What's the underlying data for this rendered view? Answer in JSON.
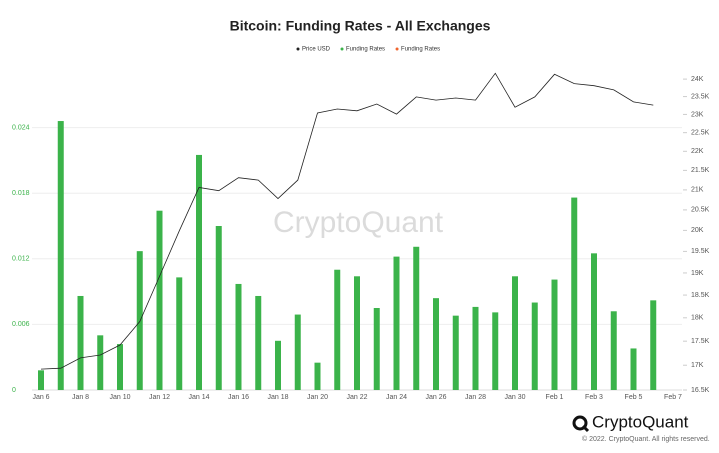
{
  "chart_data": {
    "type": "bar",
    "title": "Bitcoin: Funding Rates - All Exchanges",
    "watermark": "CryptoQuant",
    "brand": "CryptoQuant",
    "copyright": "© 2022. CryptoQuant. All rights reserved.",
    "categories": [
      "Jan 6",
      null,
      "Jan 8",
      null,
      "Jan 10",
      null,
      "Jan 12",
      null,
      "Jan 14",
      null,
      "Jan 16",
      null,
      "Jan 18",
      null,
      "Jan 20",
      null,
      "Jan 22",
      null,
      "Jan 24",
      null,
      "Jan 26",
      null,
      "Jan 28",
      null,
      "Jan 30",
      null,
      "Feb 1",
      null,
      "Feb 3",
      null,
      "Feb 5",
      null,
      "Feb 7"
    ],
    "series": [
      {
        "name": "Price USD",
        "type": "line",
        "axis": "y2",
        "color": "#222222",
        "values": [
          16920,
          16940,
          17150,
          17210,
          17420,
          17920,
          18920,
          19990,
          21060,
          20980,
          21310,
          21250,
          20780,
          21250,
          23040,
          23150,
          23100,
          23290,
          23010,
          23490,
          23400,
          23460,
          23400,
          24170,
          23200,
          23490,
          24140,
          23870,
          23810,
          23690,
          23350,
          23260,
          null
        ]
      },
      {
        "name": "Funding Rates",
        "type": "bar",
        "color": "#3bb34a",
        "values": [
          0.0018,
          0.0246,
          0.0086,
          0.005,
          0.0042,
          0.0127,
          0.0164,
          0.0103,
          0.0215,
          0.015,
          0.0097,
          0.0086,
          0.0045,
          0.0069,
          0.0025,
          0.011,
          0.0104,
          0.0075,
          0.0122,
          0.0131,
          0.0084,
          0.0068,
          0.0076,
          0.0071,
          0.0104,
          0.008,
          0.0101,
          0.0176,
          0.0125,
          0.0072,
          0.0038,
          0.0082,
          null
        ]
      },
      {
        "name": "Funding Rates",
        "type": "bar",
        "color": "#f0642d",
        "values": [
          null,
          null,
          null,
          null,
          null,
          null,
          null,
          null,
          null,
          null,
          null,
          null,
          null,
          null,
          null,
          null,
          null,
          null,
          null,
          null,
          null,
          null,
          null,
          null,
          null,
          null,
          null,
          null,
          null,
          null,
          null,
          null,
          null
        ]
      }
    ],
    "ylim": [
      0,
      0.03
    ],
    "yticks": [
      0,
      0.006,
      0.012,
      0.018,
      0.024
    ],
    "ytick_color": "#3bb34a",
    "y2lim": [
      16500,
      24500
    ],
    "y2log": true,
    "y2ticks": [
      {
        "value": 16500,
        "label": "16.5K"
      },
      {
        "value": 17000,
        "label": "17K"
      },
      {
        "value": 17500,
        "label": "17.5K"
      },
      {
        "value": 18000,
        "label": "18K"
      },
      {
        "value": 18500,
        "label": "18.5K"
      },
      {
        "value": 19000,
        "label": "19K"
      },
      {
        "value": 19500,
        "label": "19.5K"
      },
      {
        "value": 20000,
        "label": "20K"
      },
      {
        "value": 20500,
        "label": "20.5K"
      },
      {
        "value": 21000,
        "label": "21K"
      },
      {
        "value": 21500,
        "label": "21.5K"
      },
      {
        "value": 22000,
        "label": "22K"
      },
      {
        "value": 22500,
        "label": "22.5K"
      },
      {
        "value": 23000,
        "label": "23K"
      },
      {
        "value": 23500,
        "label": "23.5K"
      },
      {
        "value": 24000,
        "label": "24K"
      }
    ],
    "grid": true
  }
}
